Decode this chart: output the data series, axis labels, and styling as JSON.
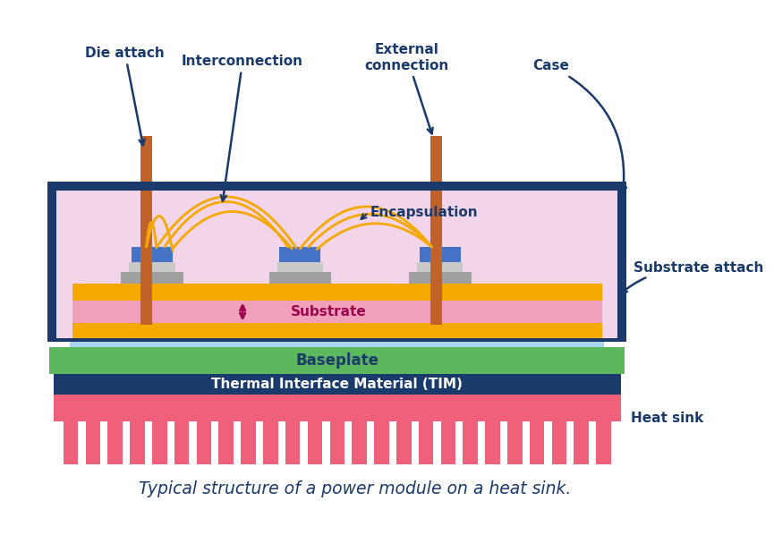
{
  "bg_color": "#ffffff",
  "title": "Typical structure of a power module on a heat sink.",
  "title_color": "#1a5276",
  "title_fontsize": 13.5,
  "colors": {
    "case_border": "#1a3a6b",
    "encapsulation_fill": "#f2d5e8",
    "substrate_yellow": "#f5a800",
    "substrate_pink": "#f0a0b8",
    "substrate_blue_thin": "#a8d4f0",
    "baseplate_green": "#5cb85c",
    "tim_darkblue": "#1a3a6b",
    "heatsink_pink": "#f0607a",
    "die_blue": "#4472c4",
    "die_gray": "#a0a0a0",
    "die_gray_light": "#c8c8c8",
    "connector_orange": "#c0622a",
    "wire_yellow": "#f5a800",
    "label_dark": "#1a3a6b",
    "substrate_label": "#a00050"
  },
  "labels": {
    "die_attach": "Die attach",
    "interconnection": "Interconnection",
    "external_connection": "External\nconnection",
    "case": "Case",
    "encapsulation": "Encapsulation",
    "substrate_attach": "Substrate attach",
    "substrate": "Substrate",
    "baseplate": "Baseplate",
    "tim": "Thermal Interface Material (TIM)",
    "heat_sink": "Heat sink"
  }
}
